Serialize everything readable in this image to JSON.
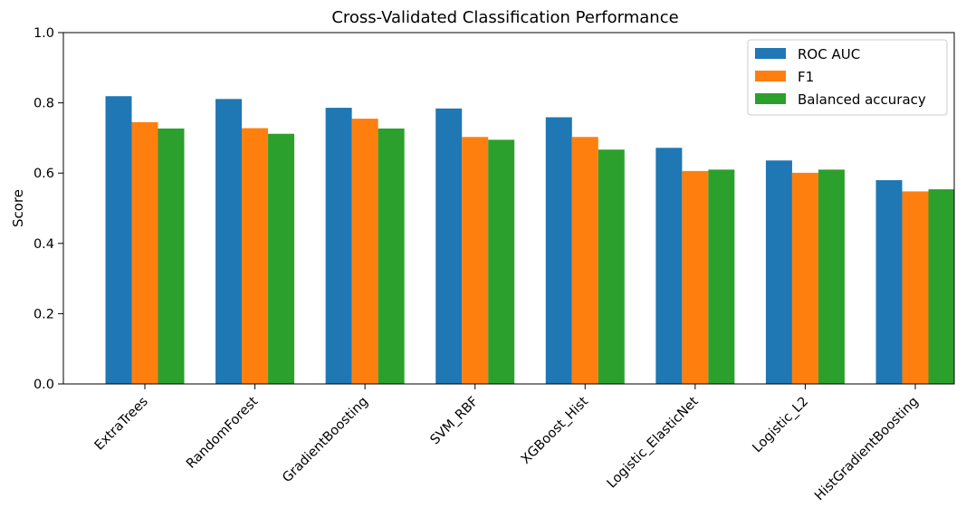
{
  "chart_data": {
    "type": "bar",
    "title": "Cross-Validated Classification Performance",
    "xlabel": "",
    "ylabel": "Score",
    "ylim": [
      0,
      1.0
    ],
    "yticks": [
      "0.0",
      "0.2",
      "0.4",
      "0.6",
      "0.8",
      "1.0"
    ],
    "grid": false,
    "legend_position": "top-right",
    "categories": [
      "ExtraTrees",
      "RandomForest",
      "GradientBoosting",
      "SVM_RBF",
      "XGBoost_Hist",
      "Logistic_ElasticNet",
      "Logistic_L2",
      "HistGradientBoosting"
    ],
    "series": [
      {
        "name": "ROC AUC",
        "color": "#1f77b4",
        "values": [
          0.819,
          0.811,
          0.786,
          0.784,
          0.759,
          0.672,
          0.636,
          0.58
        ]
      },
      {
        "name": "F1",
        "color": "#ff7f0e",
        "values": [
          0.745,
          0.728,
          0.755,
          0.703,
          0.703,
          0.606,
          0.601,
          0.548
        ]
      },
      {
        "name": "Balanced accuracy",
        "color": "#2ca02c",
        "values": [
          0.727,
          0.712,
          0.727,
          0.695,
          0.667,
          0.61,
          0.61,
          0.554
        ]
      }
    ]
  }
}
